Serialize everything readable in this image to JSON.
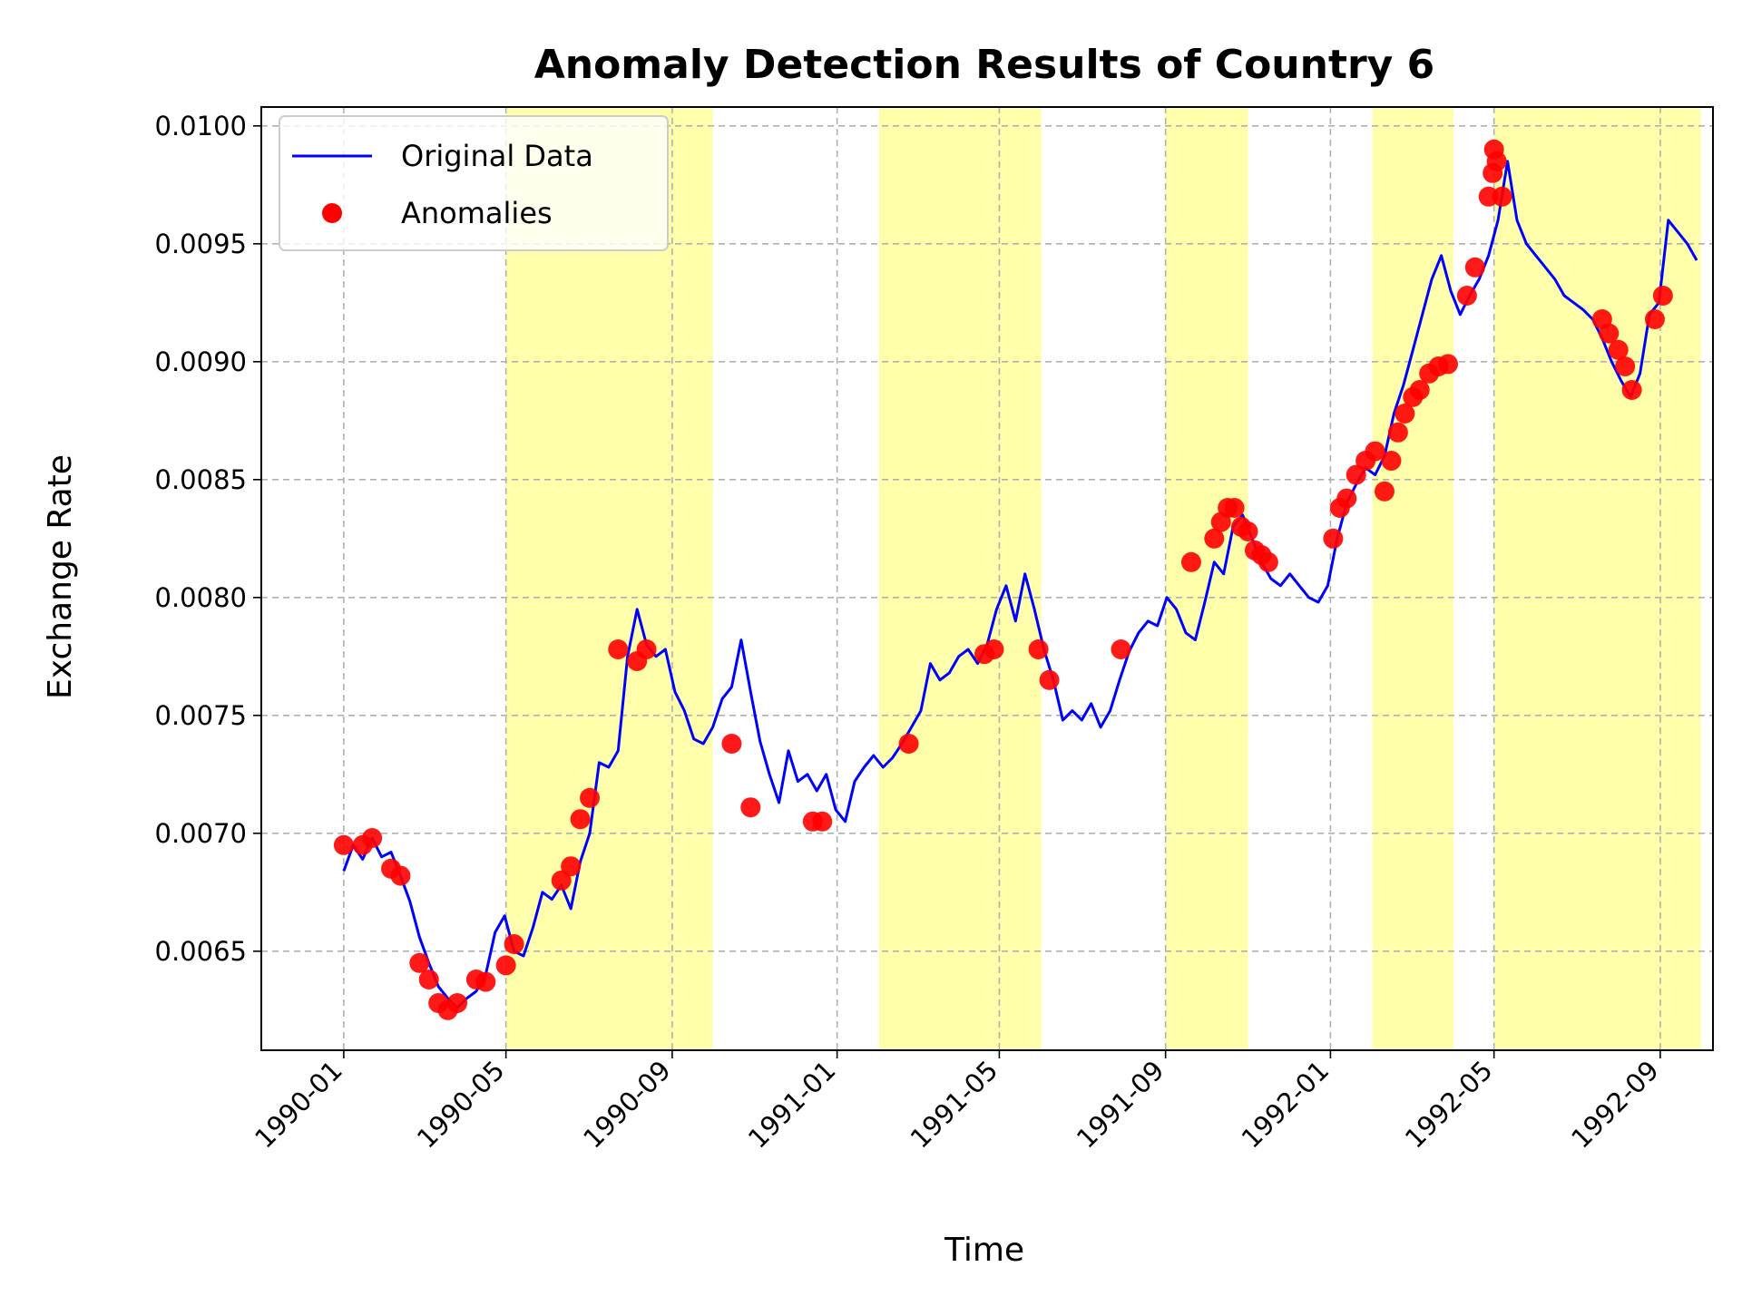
{
  "chart_data": {
    "type": "line",
    "title": "Anomaly Detection Results of Country 6",
    "xlabel": "Time",
    "ylabel": "Exchange Rate",
    "xlim": [
      "1989-11-01",
      "1992-10-10"
    ],
    "ylim": [
      0.00608,
      0.01008
    ],
    "x_ticks": [
      "1990-01",
      "1990-05",
      "1990-09",
      "1991-01",
      "1991-05",
      "1991-09",
      "1992-01",
      "1992-05",
      "1992-09"
    ],
    "y_ticks": [
      "0.0065",
      "0.0070",
      "0.0075",
      "0.0080",
      "0.0085",
      "0.0090",
      "0.0095",
      "0.0100"
    ],
    "grid": true,
    "legend_position": "top-left",
    "legend": [
      "Original Data",
      "Anomalies"
    ],
    "colors": {
      "line": "#0000ff",
      "anomaly": "#ff0000",
      "highlight": "#ffff66"
    },
    "highlight_periods": [
      [
        "1990-05-01",
        "1990-10-01"
      ],
      [
        "1991-02-01",
        "1991-06-01"
      ],
      [
        "1991-09-01",
        "1991-11-01"
      ],
      [
        "1992-02-01",
        "1992-04-01"
      ],
      [
        "1992-05-01",
        "1992-07-01"
      ],
      [
        "1992-07-01",
        "1992-10-01"
      ]
    ],
    "series": [
      {
        "name": "Original Data",
        "x": [
          "1990-01-01",
          "1990-01-08",
          "1990-01-15",
          "1990-01-22",
          "1990-01-29",
          "1990-02-05",
          "1990-02-12",
          "1990-02-19",
          "1990-02-26",
          "1990-03-05",
          "1990-03-12",
          "1990-03-19",
          "1990-03-26",
          "1990-04-02",
          "1990-04-09",
          "1990-04-16",
          "1990-04-23",
          "1990-04-30",
          "1990-05-07",
          "1990-05-14",
          "1990-05-21",
          "1990-05-28",
          "1990-06-04",
          "1990-06-11",
          "1990-06-18",
          "1990-06-25",
          "1990-07-02",
          "1990-07-09",
          "1990-07-16",
          "1990-07-23",
          "1990-07-30",
          "1990-08-06",
          "1990-08-13",
          "1990-08-20",
          "1990-08-27",
          "1990-09-03",
          "1990-09-10",
          "1990-09-17",
          "1990-09-24",
          "1990-10-01",
          "1990-10-08",
          "1990-10-15",
          "1990-10-22",
          "1990-10-29",
          "1990-11-05",
          "1990-11-12",
          "1990-11-19",
          "1990-11-26",
          "1990-12-03",
          "1990-12-10",
          "1990-12-17",
          "1990-12-24",
          "1990-12-31",
          "1991-01-07",
          "1991-01-14",
          "1991-01-21",
          "1991-01-28",
          "1991-02-04",
          "1991-02-11",
          "1991-02-18",
          "1991-02-25",
          "1991-03-04",
          "1991-03-11",
          "1991-03-18",
          "1991-03-25",
          "1991-04-01",
          "1991-04-08",
          "1991-04-15",
          "1991-04-22",
          "1991-04-29",
          "1991-05-06",
          "1991-05-13",
          "1991-05-20",
          "1991-05-27",
          "1991-06-03",
          "1991-06-10",
          "1991-06-17",
          "1991-06-24",
          "1991-07-01",
          "1991-07-08",
          "1991-07-15",
          "1991-07-22",
          "1991-07-29",
          "1991-08-05",
          "1991-08-12",
          "1991-08-19",
          "1991-08-26",
          "1991-09-02",
          "1991-09-09",
          "1991-09-16",
          "1991-09-23",
          "1991-09-30",
          "1991-10-07",
          "1991-10-14",
          "1991-10-21",
          "1991-10-28",
          "1991-11-04",
          "1991-11-11",
          "1991-11-18",
          "1991-11-25",
          "1991-12-02",
          "1991-12-09",
          "1991-12-16",
          "1991-12-23",
          "1991-12-30",
          "1992-01-06",
          "1992-01-13",
          "1992-01-20",
          "1992-01-27",
          "1992-02-03",
          "1992-02-10",
          "1992-02-17",
          "1992-02-24",
          "1992-03-02",
          "1992-03-09",
          "1992-03-16",
          "1992-03-23",
          "1992-03-30",
          "1992-04-06",
          "1992-04-13",
          "1992-04-20",
          "1992-04-27",
          "1992-05-04",
          "1992-05-11",
          "1992-05-18",
          "1992-05-25",
          "1992-06-01",
          "1992-06-08",
          "1992-06-15",
          "1992-06-22",
          "1992-06-29",
          "1992-07-06",
          "1992-07-13",
          "1992-07-20",
          "1992-07-27",
          "1992-08-03",
          "1992-08-10",
          "1992-08-17",
          "1992-08-24",
          "1992-08-31",
          "1992-09-07",
          "1992-09-14",
          "1992-09-21",
          "1992-09-28"
        ],
        "y": [
          0.00684,
          0.00695,
          0.00689,
          0.00698,
          0.0069,
          0.00692,
          0.00682,
          0.00671,
          0.00656,
          0.00645,
          0.00635,
          0.0063,
          0.00626,
          0.0063,
          0.00633,
          0.0064,
          0.00658,
          0.00665,
          0.0065,
          0.00648,
          0.0066,
          0.00675,
          0.00672,
          0.00678,
          0.00668,
          0.00688,
          0.007,
          0.0073,
          0.00728,
          0.00735,
          0.00775,
          0.00795,
          0.0078,
          0.00775,
          0.00778,
          0.0076,
          0.00752,
          0.0074,
          0.00738,
          0.00745,
          0.00757,
          0.00762,
          0.00782,
          0.0076,
          0.00739,
          0.00725,
          0.00713,
          0.00735,
          0.00722,
          0.00725,
          0.00718,
          0.00725,
          0.0071,
          0.00705,
          0.00722,
          0.00728,
          0.00733,
          0.00728,
          0.00732,
          0.00738,
          0.00745,
          0.00752,
          0.00772,
          0.00765,
          0.00768,
          0.00775,
          0.00778,
          0.00772,
          0.0078,
          0.00795,
          0.00805,
          0.0079,
          0.0081,
          0.00795,
          0.00778,
          0.00765,
          0.00748,
          0.00752,
          0.00748,
          0.00755,
          0.00745,
          0.00752,
          0.00765,
          0.00777,
          0.00785,
          0.0079,
          0.00788,
          0.008,
          0.00795,
          0.00785,
          0.00782,
          0.00798,
          0.00815,
          0.0081,
          0.0083,
          0.00835,
          0.00825,
          0.00815,
          0.00808,
          0.00805,
          0.0081,
          0.00805,
          0.008,
          0.00798,
          0.00805,
          0.00825,
          0.0084,
          0.00848,
          0.00855,
          0.00852,
          0.0086,
          0.00878,
          0.0089,
          0.00905,
          0.0092,
          0.00935,
          0.00945,
          0.0093,
          0.0092,
          0.00928,
          0.00935,
          0.00945,
          0.0096,
          0.00985,
          0.0096,
          0.0095,
          0.00945,
          0.0094,
          0.00935,
          0.00928,
          0.00925,
          0.00922,
          0.00918,
          0.0091,
          0.009,
          0.00892,
          0.00885,
          0.00895,
          0.0092,
          0.00925,
          0.0096,
          0.00955,
          0.0095,
          0.00943
        ]
      },
      {
        "name": "Anomalies",
        "x": [
          "1990-01-01",
          "1990-01-15",
          "1990-01-22",
          "1990-02-05",
          "1990-02-12",
          "1990-02-26",
          "1990-03-05",
          "1990-03-12",
          "1990-03-19",
          "1990-03-26",
          "1990-04-09",
          "1990-04-16",
          "1990-05-01",
          "1990-05-07",
          "1990-06-11",
          "1990-06-18",
          "1990-06-25",
          "1990-07-02",
          "1990-07-23",
          "1990-08-06",
          "1990-08-13",
          "1990-10-15",
          "1990-10-29",
          "1990-12-14",
          "1990-12-21",
          "1991-02-23",
          "1991-04-20",
          "1991-04-27",
          "1991-05-30",
          "1991-06-07",
          "1991-07-30",
          "1991-09-20",
          "1991-10-07",
          "1991-10-12",
          "1991-10-17",
          "1991-10-22",
          "1991-10-27",
          "1991-11-01",
          "1991-11-06",
          "1991-11-11",
          "1991-11-16",
          "1992-01-03",
          "1992-01-08",
          "1992-01-13",
          "1992-01-20",
          "1992-01-27",
          "1992-02-03",
          "1992-02-10",
          "1992-02-15",
          "1992-02-20",
          "1992-02-25",
          "1992-03-02",
          "1992-03-07",
          "1992-03-14",
          "1992-03-21",
          "1992-03-28",
          "1992-04-11",
          "1992-04-17",
          "1992-04-27",
          "1992-04-30",
          "1992-05-01",
          "1992-05-03",
          "1992-05-07",
          "1992-07-20",
          "1992-07-25",
          "1992-08-01",
          "1992-08-06",
          "1992-08-11",
          "1992-08-28",
          "1992-09-03"
        ],
        "y": [
          0.00695,
          0.00695,
          0.00698,
          0.00685,
          0.00682,
          0.00645,
          0.00638,
          0.00628,
          0.00625,
          0.00628,
          0.00638,
          0.00637,
          0.00644,
          0.00653,
          0.0068,
          0.00686,
          0.00706,
          0.00715,
          0.00778,
          0.00773,
          0.00778,
          0.00738,
          0.00711,
          0.00705,
          0.00705,
          0.00738,
          0.00776,
          0.00778,
          0.00778,
          0.00765,
          0.00778,
          0.00815,
          0.00825,
          0.00832,
          0.00838,
          0.00838,
          0.0083,
          0.00828,
          0.0082,
          0.00818,
          0.00815,
          0.00825,
          0.00838,
          0.00842,
          0.00852,
          0.00858,
          0.00862,
          0.00845,
          0.00858,
          0.0087,
          0.00878,
          0.00885,
          0.00888,
          0.00895,
          0.00898,
          0.00899,
          0.00928,
          0.0094,
          0.0097,
          0.0098,
          0.0099,
          0.00985,
          0.0097,
          0.00918,
          0.00912,
          0.00905,
          0.00898,
          0.00888,
          0.00918,
          0.00928
        ]
      }
    ]
  }
}
